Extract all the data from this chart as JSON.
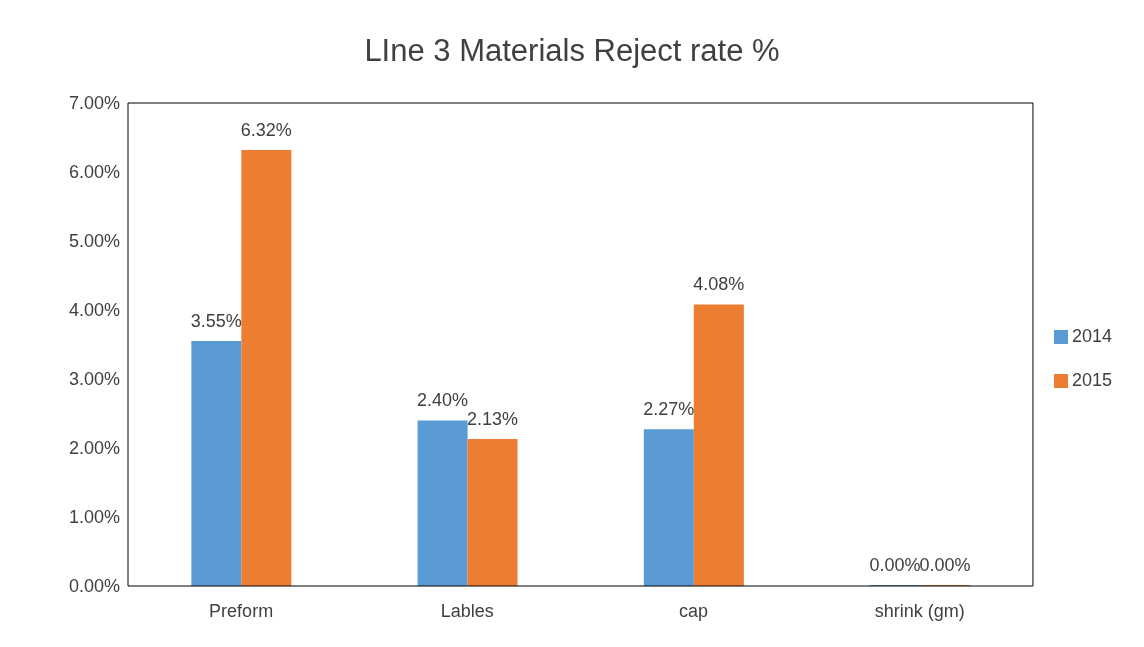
{
  "chart_data": {
    "type": "bar",
    "title": "LIne 3 Materials Reject rate %",
    "categories": [
      "Preform",
      "Lables",
      "cap",
      "shrink (gm)"
    ],
    "series": [
      {
        "name": "2014",
        "color": "#5b9bd5",
        "values": [
          3.55,
          2.4,
          2.27,
          0
        ],
        "value_labels": [
          "3.55%",
          "2.40%",
          "2.27%",
          "0.00%"
        ]
      },
      {
        "name": "2015",
        "color": "#ed7d31",
        "values": [
          6.32,
          2.13,
          4.08,
          0
        ],
        "value_labels": [
          "6.32%",
          "2.13%",
          "4.08%",
          "0.00%"
        ]
      }
    ],
    "ylim": [
      0,
      7
    ],
    "yticks": [
      {
        "value": 0,
        "label": "0.00%"
      },
      {
        "value": 1,
        "label": "1.00%"
      },
      {
        "value": 2,
        "label": "2.00%"
      },
      {
        "value": 3,
        "label": "3.00%"
      },
      {
        "value": 4,
        "label": "4.00%"
      },
      {
        "value": 5,
        "label": "5.00%"
      },
      {
        "value": 6,
        "label": "6.00%"
      },
      {
        "value": 7,
        "label": "7.00%"
      }
    ],
    "grid": false,
    "legend": "right"
  }
}
